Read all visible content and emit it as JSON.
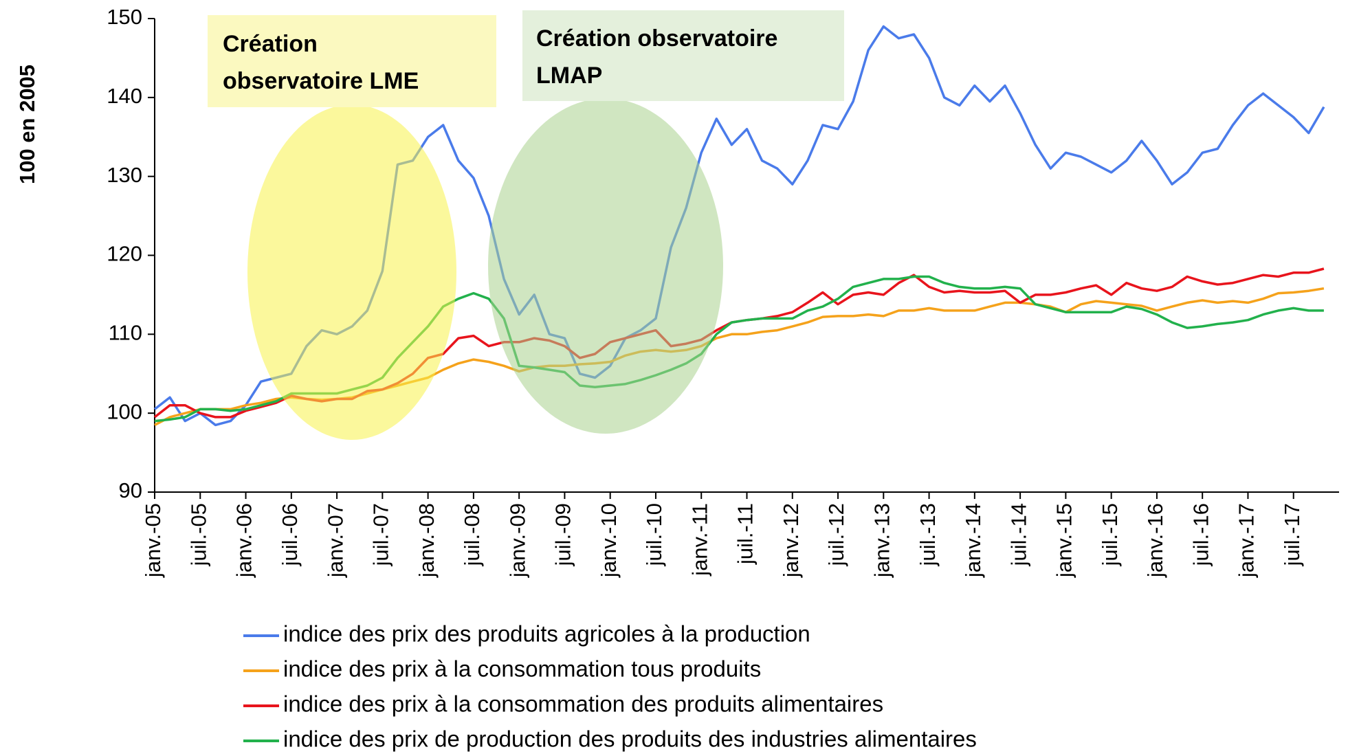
{
  "chart_data": {
    "type": "line",
    "y_label": "100 en 2005",
    "categories": [
      "janv.-05",
      null,
      null,
      "juil.-05",
      null,
      null,
      "janv.-06",
      null,
      null,
      "juil.-06",
      null,
      null,
      "janv.-07",
      null,
      null,
      "juil.-07",
      null,
      null,
      "janv.-08",
      null,
      null,
      "juil.-08",
      null,
      null,
      "janv.-09",
      null,
      null,
      "juil.-09",
      null,
      null,
      "janv.-10",
      null,
      null,
      "juil.-10",
      null,
      null,
      "janv.-11",
      null,
      null,
      "juil.-11",
      null,
      null,
      "janv.-12",
      null,
      null,
      "juil.-12",
      null,
      null,
      "janv.-13",
      null,
      null,
      "juil.-13",
      null,
      null,
      "janv.-14",
      null,
      null,
      "juil.-14",
      null,
      null,
      "janv.-15",
      null,
      null,
      "juil.-15",
      null,
      null,
      "janv.-16",
      null,
      null,
      "juil.-16",
      null,
      null,
      "janv.-17",
      null,
      null,
      "juil.-17",
      null,
      null
    ],
    "ylim": [
      90,
      150
    ],
    "yticks": [
      90,
      100,
      110,
      120,
      130,
      140,
      150
    ],
    "series": [
      {
        "name": "indice des prix des produits agricoles à la production",
        "color": "#4a7bea",
        "values": [
          100.5,
          102,
          99,
          100,
          98.5,
          99,
          101,
          104,
          104.5,
          105,
          108.5,
          110.5,
          110,
          111,
          113,
          118,
          131.5,
          132,
          135,
          136.5,
          132,
          129.8,
          125,
          117,
          112.5,
          115,
          110,
          109.5,
          105,
          104.5,
          106,
          109.5,
          110.5,
          112,
          121,
          126,
          133,
          137.3,
          134,
          136,
          132,
          131,
          129,
          132,
          136.5,
          136,
          139.5,
          146,
          149,
          147.5,
          148,
          145,
          140,
          139,
          141.5,
          139.5,
          141.5,
          138,
          134,
          131,
          133,
          132.5,
          131.5,
          130.5,
          132,
          134.5,
          132,
          129,
          130.5,
          133,
          133.5,
          136.5,
          139,
          140.5,
          139,
          137.5,
          135.5,
          138.8
        ]
      },
      {
        "name": "indice des prix à la consommation tous produits",
        "color": "#f5a21b",
        "values": [
          98.5,
          99.5,
          100,
          100.5,
          100.5,
          100.5,
          101,
          101.3,
          101.8,
          102,
          101.8,
          101.7,
          101.8,
          102,
          102.5,
          103,
          103.5,
          104,
          104.5,
          105.5,
          106.3,
          106.8,
          106.5,
          106,
          105.3,
          105.8,
          106,
          106,
          106.2,
          106.3,
          106.5,
          107.3,
          107.8,
          108,
          107.8,
          108,
          108.5,
          109.5,
          110,
          110,
          110.3,
          110.5,
          111,
          111.5,
          112.2,
          112.3,
          112.3,
          112.5,
          112.3,
          113,
          113,
          113.3,
          113,
          113,
          113,
          113.5,
          114,
          114,
          113.8,
          113.5,
          112.8,
          113.8,
          114.2,
          114,
          113.8,
          113.6,
          113,
          113.5,
          114,
          114.3,
          114,
          114.2,
          114,
          114.5,
          115.2,
          115.3,
          115.5,
          115.8
        ]
      },
      {
        "name": "indice des prix à la consommation des produits alimentaires",
        "color": "#e8141c",
        "values": [
          99.5,
          101,
          101,
          100,
          99.5,
          99.5,
          100.3,
          100.8,
          101.3,
          102.2,
          101.8,
          101.5,
          101.8,
          101.8,
          102.8,
          103,
          103.8,
          105,
          107,
          107.5,
          109.5,
          109.8,
          108.5,
          109,
          109,
          109.5,
          109.2,
          108.5,
          107,
          107.5,
          109,
          109.5,
          110,
          110.5,
          108.5,
          108.8,
          109.3,
          110.5,
          111.5,
          111.8,
          112,
          112.3,
          112.8,
          114,
          115.3,
          113.8,
          115,
          115.3,
          115,
          116.5,
          117.5,
          116,
          115.3,
          115.5,
          115.3,
          115.3,
          115.5,
          114,
          115,
          115,
          115.3,
          115.8,
          116.2,
          115,
          116.5,
          115.8,
          115.5,
          116,
          117.3,
          116.7,
          116.3,
          116.5,
          117,
          117.5,
          117.3,
          117.8,
          117.8,
          118.3
        ]
      },
      {
        "name": "indice des prix de production des produits des industries alimentaires",
        "color": "#22b14c",
        "values": [
          99,
          99.2,
          99.5,
          100.5,
          100.5,
          100.3,
          100.5,
          101,
          101.5,
          102.5,
          102.5,
          102.5,
          102.5,
          103,
          103.5,
          104.5,
          107,
          109,
          111,
          113.5,
          114.5,
          115.2,
          114.5,
          112,
          106,
          105.8,
          105.5,
          105.2,
          103.5,
          103.3,
          103.5,
          103.7,
          104.2,
          104.8,
          105.5,
          106.3,
          107.5,
          110,
          111.5,
          111.8,
          112,
          112,
          112,
          113,
          113.5,
          114.5,
          116,
          116.5,
          117,
          117,
          117.3,
          117.3,
          116.5,
          116,
          115.8,
          115.8,
          116,
          115.8,
          113.8,
          113.3,
          112.8,
          112.8,
          112.8,
          112.8,
          113.5,
          113.2,
          112.5,
          111.5,
          110.8,
          111,
          111.3,
          111.5,
          111.8,
          112.5,
          113,
          113.3,
          113,
          113
        ]
      }
    ],
    "annotations": [
      {
        "lines": [
          "Création",
          "observatoire LME"
        ],
        "color": "#fbf9c0",
        "highlight_color": "#f7f24a"
      },
      {
        "lines": [
          "Création observatoire",
          "LMAP"
        ],
        "color": "#e4f0dc",
        "highlight_color": "#a9d18e"
      }
    ]
  }
}
